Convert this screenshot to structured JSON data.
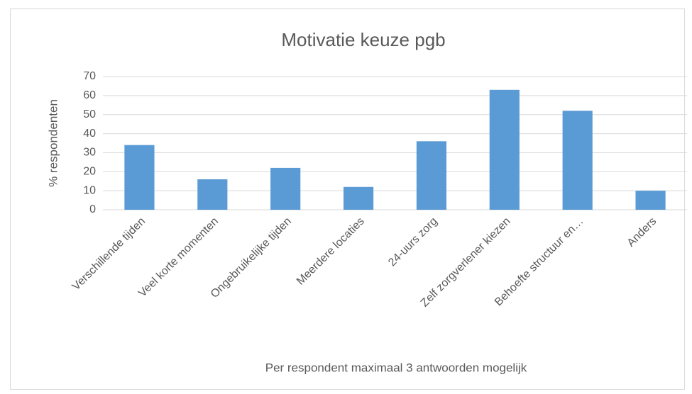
{
  "chart_data": {
    "type": "bar",
    "title": "Motivatie keuze pgb",
    "x_label": "Per respondent maximaal 3 antwoorden mogelijk",
    "y_label": "% respondenten",
    "categories": [
      "Verschillende tijden",
      "Veel korte momenten",
      "Ongebruikelijke tijden",
      "Meerdere locaties",
      "24-uurs zorg",
      "Zelf zorgverlener kiezen",
      "Behoefte structuur en…",
      "Anders"
    ],
    "values": [
      34,
      16,
      22,
      12,
      36,
      63,
      52,
      10
    ],
    "color": "#5b9bd5",
    "ylim": [
      0,
      70
    ],
    "yticks": [
      0,
      10,
      20,
      30,
      40,
      50,
      60,
      70
    ],
    "grid": true
  }
}
